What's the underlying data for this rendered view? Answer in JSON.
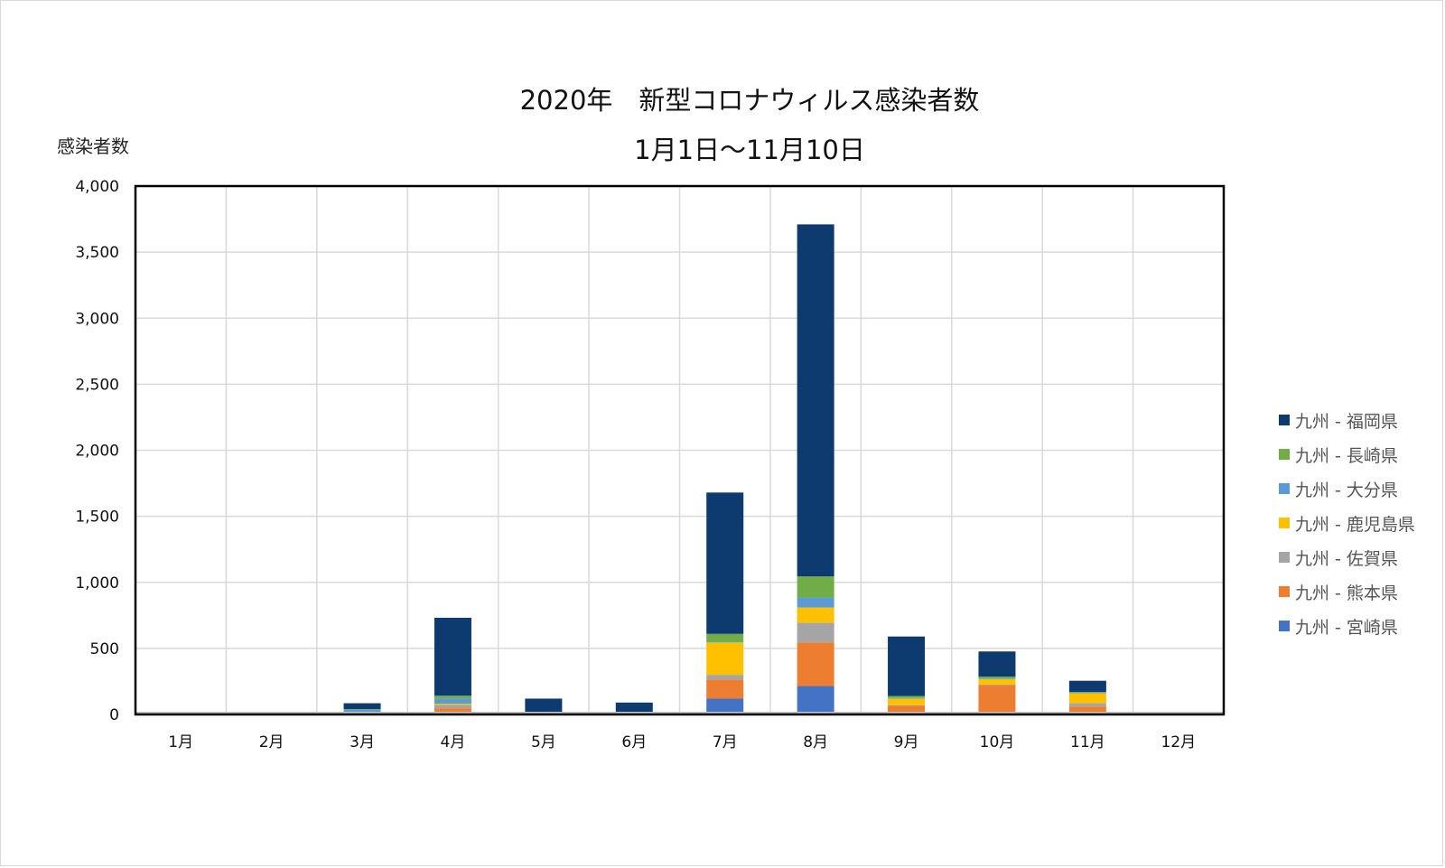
{
  "chart_data": {
    "type": "bar",
    "stacked": true,
    "title": "2020年　新型コロナウィルス感染者数",
    "subtitle": "1月1日～11月10日",
    "ylabel": "感染者数",
    "xlabel": "",
    "ylim": [
      0,
      4000
    ],
    "yticks": [
      "0",
      "500",
      "1,000",
      "1,500",
      "2,000",
      "2,500",
      "3,000",
      "3,500",
      "4,000"
    ],
    "ytick_values": [
      0,
      500,
      1000,
      1500,
      2000,
      2500,
      3000,
      3500,
      4000
    ],
    "grid": true,
    "legend_position": "right",
    "categories": [
      "1月",
      "2月",
      "3月",
      "4月",
      "5月",
      "6月",
      "7月",
      "8月",
      "9月",
      "10月",
      "11月",
      "12月"
    ],
    "series": [
      {
        "name": "九州 - 宮崎県",
        "color": "#4472c4",
        "values": [
          0,
          0,
          0,
          17,
          0,
          0,
          120,
          215,
          10,
          7,
          5,
          0
        ]
      },
      {
        "name": "九州 - 熊本県",
        "color": "#ed7d31",
        "values": [
          0,
          0,
          5,
          30,
          0,
          0,
          145,
          330,
          55,
          215,
          55,
          0
        ]
      },
      {
        "name": "九州 - 佐賀県",
        "color": "#a5a5a5",
        "values": [
          0,
          0,
          8,
          25,
          0,
          0,
          35,
          150,
          5,
          5,
          25,
          0
        ]
      },
      {
        "name": "九州 - 鹿児島県",
        "color": "#ffc000",
        "values": [
          0,
          0,
          2,
          10,
          0,
          0,
          245,
          115,
          50,
          40,
          75,
          0
        ]
      },
      {
        "name": "九州 - 大分県",
        "color": "#5b9bd5",
        "values": [
          0,
          0,
          20,
          40,
          0,
          0,
          5,
          75,
          5,
          5,
          5,
          0
        ]
      },
      {
        "name": "九州 - 長崎県",
        "color": "#70ad47",
        "values": [
          0,
          0,
          5,
          20,
          0,
          0,
          60,
          160,
          15,
          15,
          5,
          0
        ]
      },
      {
        "name": "九州 - 福岡県",
        "color": "#0d3b70",
        "values": [
          0,
          0,
          45,
          590,
          120,
          90,
          1070,
          2665,
          450,
          190,
          85,
          0
        ]
      }
    ],
    "legend_order": [
      "九州 - 福岡県",
      "九州 - 長崎県",
      "九州 - 大分県",
      "九州 - 鹿児島県",
      "九州 - 佐賀県",
      "九州 - 熊本県",
      "九州 - 宮崎県"
    ]
  }
}
